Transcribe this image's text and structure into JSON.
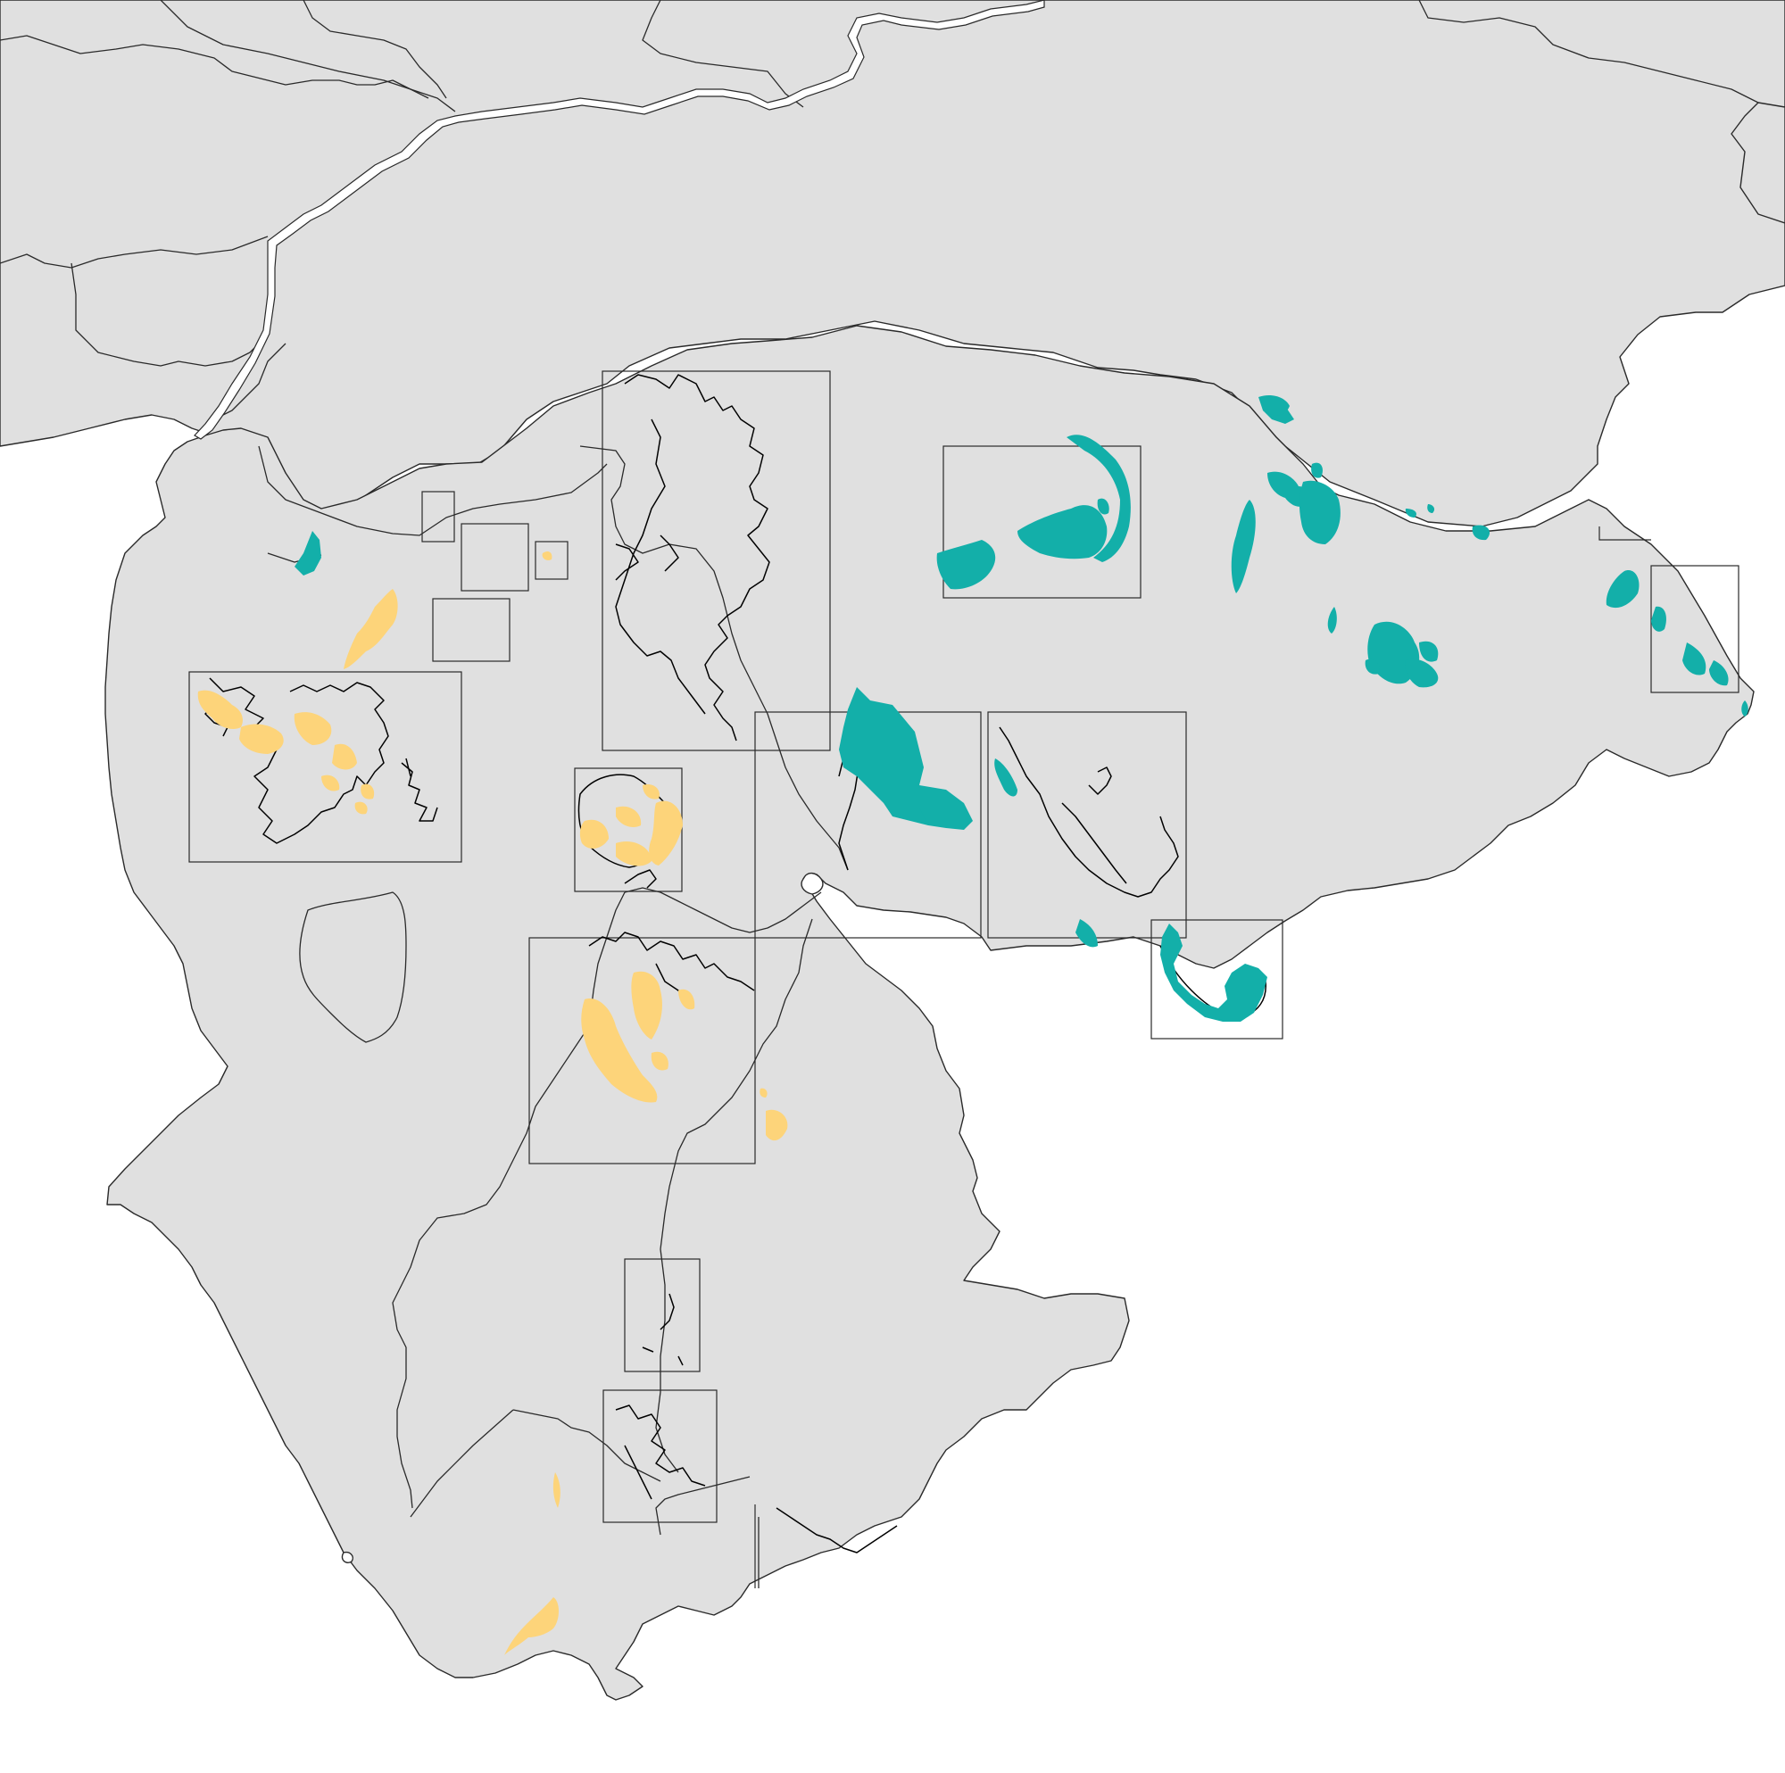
{
  "map": {
    "colors": {
      "background": "#ffffff",
      "land": "#e0e0e0",
      "outline": "#2a2a2a",
      "detail": "#000000",
      "teal": "#13afa9",
      "yellow": "#fdd47a"
    },
    "legend": null,
    "labels": []
  }
}
